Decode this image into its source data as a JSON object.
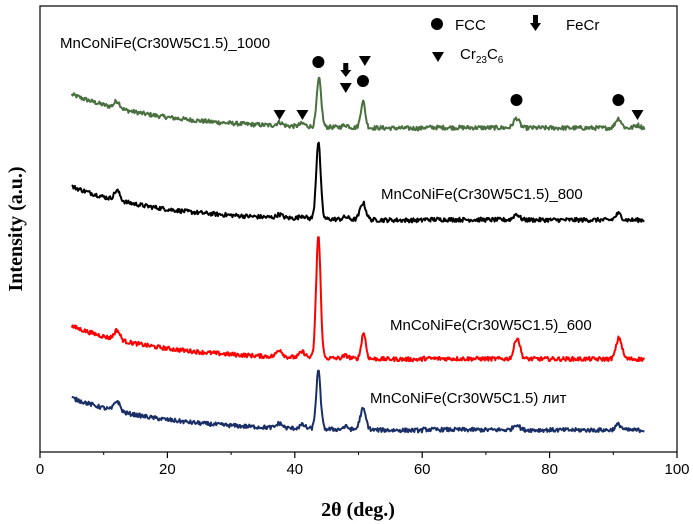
{
  "chart_data": {
    "type": "line",
    "title": "",
    "xlabel": "2θ (deg.)",
    "ylabel": "Intensity (a.u.)",
    "xlim": [
      0,
      100
    ],
    "x_ticks": [
      0,
      20,
      40,
      60,
      80,
      100
    ],
    "y_ticks_visible": false,
    "series": [
      {
        "name": "MnCoNiFe(Cr30W5C1.5)_1000",
        "color": "#4a7040",
        "baseline": 0.8,
        "start_rise": 0.95,
        "peaks": [
          {
            "x": 12.1,
            "h": 0.15
          },
          {
            "x": 37.6,
            "h": 0.07
          },
          {
            "x": 41.2,
            "h": 0.06
          },
          {
            "x": 43.8,
            "h": 1.0
          },
          {
            "x": 48.0,
            "h": 0.05
          },
          {
            "x": 50.7,
            "h": 0.55
          },
          {
            "x": 74.8,
            "h": 0.2
          },
          {
            "x": 90.8,
            "h": 0.2
          },
          {
            "x": 93.8,
            "h": 0.06
          }
        ]
      },
      {
        "name": "MnCoNiFe(Cr30W5C1.5)_800",
        "color": "#000000",
        "baseline": 0.8,
        "start_rise": 0.95,
        "peaks": [
          {
            "x": 12.1,
            "h": 0.2
          },
          {
            "x": 37.6,
            "h": 0.07
          },
          {
            "x": 41.2,
            "h": 0.06
          },
          {
            "x": 43.7,
            "h": 1.6
          },
          {
            "x": 48.0,
            "h": 0.05
          },
          {
            "x": 50.7,
            "h": 0.35
          },
          {
            "x": 74.8,
            "h": 0.12
          },
          {
            "x": 90.8,
            "h": 0.13
          }
        ]
      },
      {
        "name": "MnCoNiFe(Cr30W5C1.5)_600",
        "color": "#ff0000",
        "baseline": 0.8,
        "start_rise": 0.85,
        "peaks": [
          {
            "x": 12.1,
            "h": 0.2
          },
          {
            "x": 37.6,
            "h": 0.15
          },
          {
            "x": 41.2,
            "h": 0.12
          },
          {
            "x": 43.7,
            "h": 2.6
          },
          {
            "x": 48.0,
            "h": 0.06
          },
          {
            "x": 50.8,
            "h": 0.55
          },
          {
            "x": 74.9,
            "h": 0.45
          },
          {
            "x": 90.9,
            "h": 0.45
          }
        ]
      },
      {
        "name": "MnCoNiFe(Cr30W5C1.5)  лит",
        "color": "#1a2f66",
        "baseline": 0.8,
        "start_rise": 0.8,
        "peaks": [
          {
            "x": 12.1,
            "h": 0.22
          },
          {
            "x": 37.6,
            "h": 0.1
          },
          {
            "x": 41.2,
            "h": 0.08
          },
          {
            "x": 43.7,
            "h": 1.25
          },
          {
            "x": 48.0,
            "h": 0.06
          },
          {
            "x": 50.7,
            "h": 0.45
          },
          {
            "x": 74.8,
            "h": 0.12
          },
          {
            "x": 90.8,
            "h": 0.12
          }
        ]
      }
    ],
    "phase_markers": [
      {
        "phase": "FCC",
        "symbol": "circle",
        "x": [
          43.7,
          50.7,
          74.8,
          90.8
        ]
      },
      {
        "phase": "FeCr",
        "symbol": "arrow",
        "x": [
          48.0
        ]
      },
      {
        "phase": "Cr23C6",
        "symbol": "triangle",
        "x": [
          37.6,
          41.2,
          48.0,
          51.0,
          93.8
        ]
      }
    ],
    "legend": [
      {
        "label": "FCC",
        "symbol": "circle"
      },
      {
        "label": "FeCr",
        "symbol": "arrow"
      },
      {
        "label": "Cr",
        "sub1": "23",
        "mid": "C",
        "sub2": "6",
        "symbol": "triangle"
      }
    ]
  }
}
